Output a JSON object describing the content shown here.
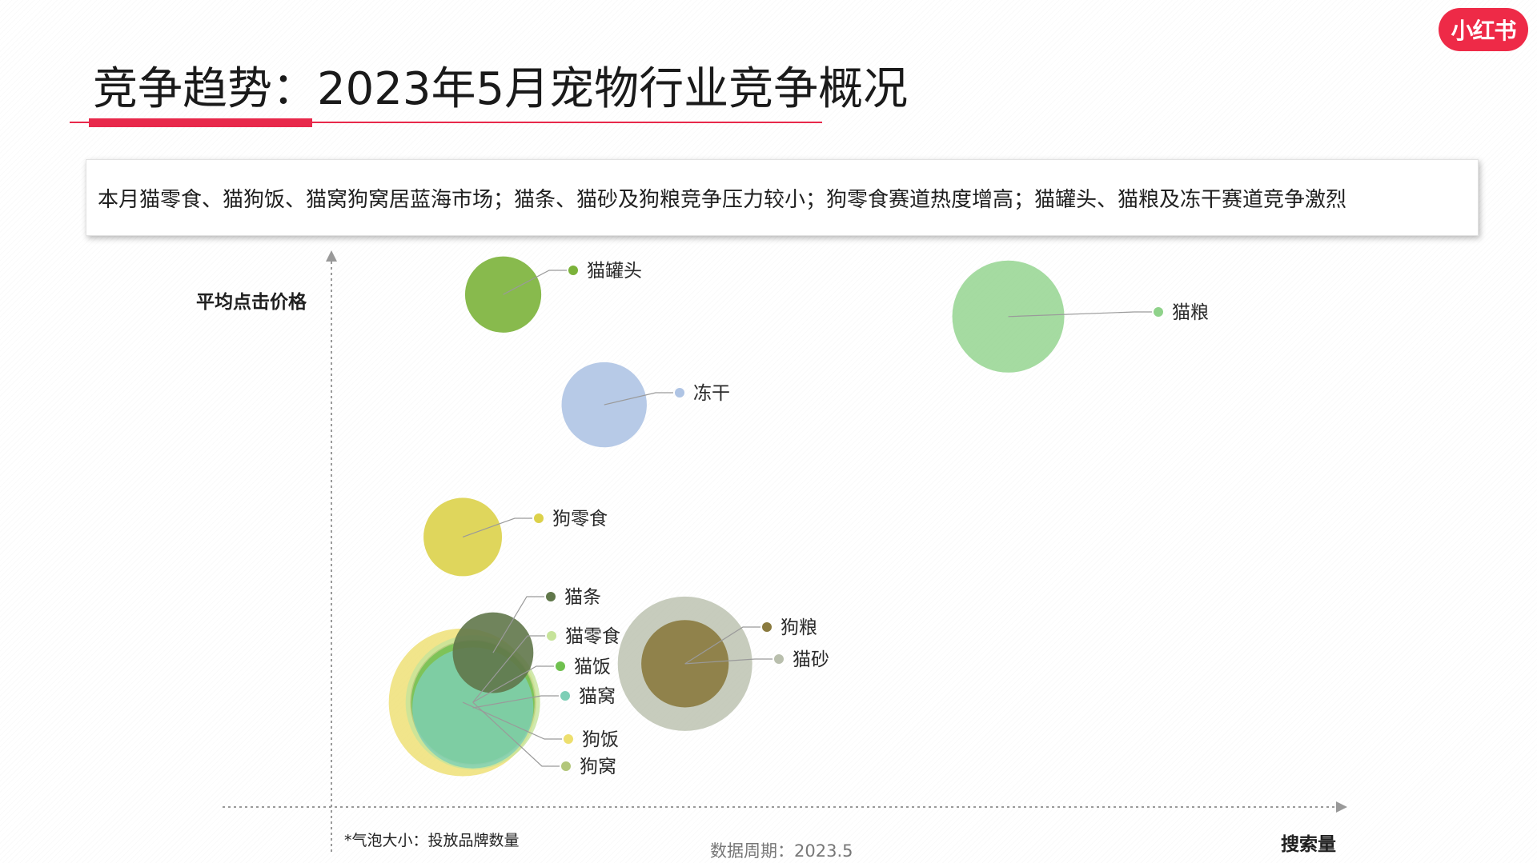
{
  "title": "竞争趋势：2023年5月宠物行业竞争概况",
  "logo": {
    "text": "小红书",
    "color": "#ee2a47"
  },
  "summary": "本月猫零食、猫狗饭、猫窝狗窝居蓝海市场；猫条、猫砂及狗粮竞争压力较小；狗零食赛道热度增高；猫罐头、猫粮及冻干赛道竞争激烈",
  "footnote": "*气泡大小：投放品牌数量",
  "period": "数据周期：2023.5",
  "colors": {
    "accent": "#e8294b"
  },
  "chart_data": {
    "type": "scatter",
    "xlabel": "搜索量",
    "ylabel": "平均点击价格",
    "size_label": "投放品牌数量",
    "xlim": [
      0,
      100
    ],
    "ylim": [
      0,
      100
    ],
    "ticks_shown": false,
    "grid": false,
    "points": [
      {
        "name": "猫罐头",
        "x": 17,
        "y": 93,
        "size": 34,
        "color": "#7bb23a"
      },
      {
        "name": "猫粮",
        "x": 67,
        "y": 89,
        "size": 50,
        "color": "#8fd28a"
      },
      {
        "name": "冻干",
        "x": 27,
        "y": 73,
        "size": 38,
        "color": "#afc4e4"
      },
      {
        "name": "狗零食",
        "x": 13,
        "y": 49,
        "size": 35,
        "color": "#dcd14a"
      },
      {
        "name": "猫条",
        "x": 16,
        "y": 28,
        "size": 36,
        "color": "#60774a"
      },
      {
        "name": "猫零食",
        "x": 14,
        "y": 19,
        "size": 60,
        "color": "#c6e39a"
      },
      {
        "name": "猫饭",
        "x": 14,
        "y": 19,
        "size": 55,
        "color": "#6fc04e"
      },
      {
        "name": "猫窝",
        "x": 14,
        "y": 18,
        "size": 54,
        "color": "#7ecfb6"
      },
      {
        "name": "狗饭",
        "x": 13,
        "y": 19,
        "size": 66,
        "color": "#eddf6e"
      },
      {
        "name": "狗窝",
        "x": 14,
        "y": 19,
        "size": 56,
        "color": "#b2c67a"
      },
      {
        "name": "狗粮",
        "x": 35,
        "y": 26,
        "size": 39,
        "color": "#8a7a3e"
      },
      {
        "name": "猫砂",
        "x": 35,
        "y": 26,
        "size": 60,
        "color": "#b9bfad"
      }
    ]
  }
}
